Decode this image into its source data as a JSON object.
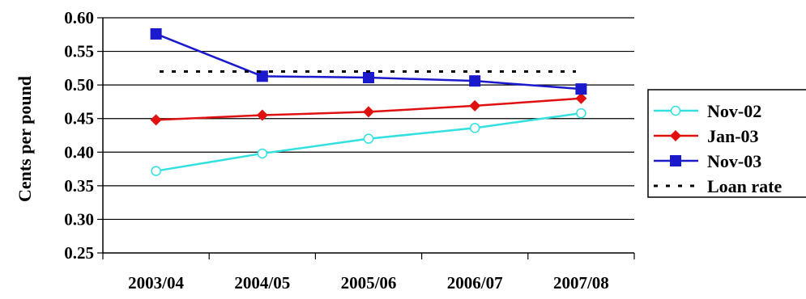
{
  "chart_data": {
    "type": "line",
    "title": "",
    "xlabel": "",
    "ylabel": "Cents per pound",
    "categories": [
      "2003/04",
      "2004/05",
      "2005/06",
      "2006/07",
      "2007/08"
    ],
    "ylim": [
      0.25,
      0.6
    ],
    "yticks": [
      "0.25",
      "0.30",
      "0.35",
      "0.40",
      "0.45",
      "0.50",
      "0.55",
      "0.60"
    ],
    "grid": true,
    "legend_position": "right",
    "series": [
      {
        "name": "Nov-02",
        "color": "#33e0e0",
        "marker": "open-circle",
        "line": "solid",
        "values": [
          0.372,
          0.398,
          0.42,
          0.436,
          0.458
        ]
      },
      {
        "name": "Jan-03",
        "color": "#e01010",
        "marker": "diamond",
        "line": "solid",
        "values": [
          0.448,
          0.455,
          0.46,
          0.469,
          0.48
        ]
      },
      {
        "name": "Nov-03",
        "color": "#1a1acc",
        "marker": "square",
        "line": "solid",
        "values": [
          0.576,
          0.513,
          0.511,
          0.506,
          0.494
        ]
      },
      {
        "name": "Loan rate",
        "color": "#000000",
        "marker": "none",
        "line": "dotted",
        "values": [
          0.52,
          0.52,
          0.52,
          0.52,
          0.52
        ]
      }
    ]
  }
}
